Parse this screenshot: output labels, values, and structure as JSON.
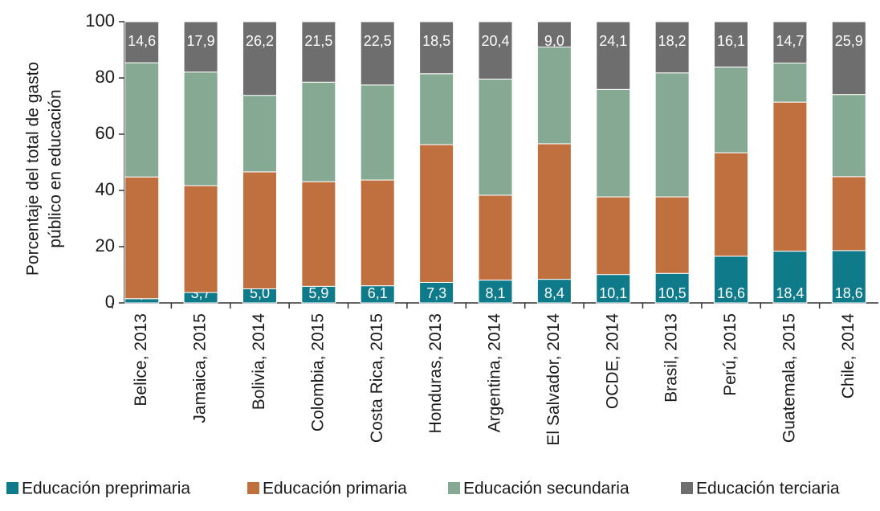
{
  "chart_data": {
    "type": "stacked_bar",
    "y_label": [
      "Porcentaje del total de gasto",
      "público en educación"
    ],
    "categories": [
      "Belice, 2013",
      "Jamaica, 2015",
      "Bolivia, 2014",
      "Colombia, 2015",
      "Costa Rica, 2015",
      "Honduras, 2013",
      "Argentina, 2014",
      "El Salvador, 2014",
      "OCDE, 2014",
      "Brasil, 2013",
      "Perú, 2015",
      "Guatemala, 2015",
      "Chile, 2014"
    ],
    "series": [
      {
        "name": "Educación preprimaria",
        "color": "#0e7a8a",
        "values": [
          1.5,
          3.7,
          5.0,
          5.9,
          6.1,
          7.3,
          8.1,
          8.4,
          10.1,
          10.5,
          16.6,
          18.4,
          18.6
        ],
        "value_labels": [
          "1,5",
          "3,7",
          "5,0",
          "5,9",
          "6,1",
          "7,3",
          "8,1",
          "8,4",
          "10,1",
          "10,5",
          "16,6",
          "18,4",
          "18,6"
        ]
      },
      {
        "name": "Educación primaria",
        "color": "#c0703e",
        "values": [
          43.3,
          38.0,
          41.6,
          37.2,
          37.6,
          49.0,
          30.2,
          48.2,
          27.6,
          27.2,
          36.8,
          53.0,
          26.3
        ]
      },
      {
        "name": "Educación secundaria",
        "color": "#86a994",
        "values": [
          40.6,
          40.4,
          27.2,
          35.4,
          33.8,
          25.2,
          41.3,
          34.4,
          38.2,
          44.1,
          30.5,
          13.9,
          29.2
        ]
      },
      {
        "name": "Educación terciaria",
        "color": "#6e6e6e",
        "values": [
          14.6,
          17.9,
          26.2,
          21.5,
          22.5,
          18.5,
          20.4,
          9.0,
          24.1,
          18.2,
          16.1,
          14.7,
          25.9
        ],
        "value_labels": [
          "14,6",
          "17,9",
          "26,2",
          "21,5",
          "22,5",
          "18,5",
          "20,4",
          "9,0",
          "24,1",
          "18,2",
          "16,1",
          "14,7",
          "25,9"
        ]
      }
    ],
    "ylim": [
      0,
      100
    ],
    "yticks": [
      0,
      20,
      40,
      60,
      80,
      100
    ],
    "legend": "bottom"
  }
}
